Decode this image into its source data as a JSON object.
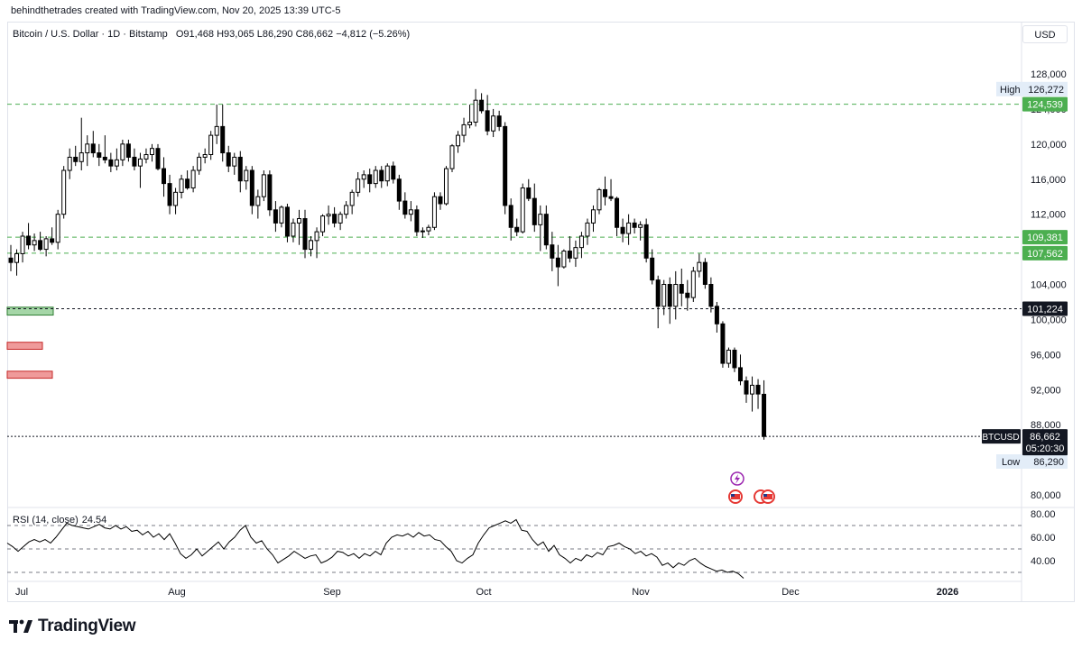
{
  "caption": "behindthetrades created with TradingView.com, Nov 20, 2025 13:39 UTC-5",
  "legend": {
    "symbol": "Bitcoin / U.S. Dollar · 1D · Bitstamp",
    "ohlc": "O91,468 H93,065 L86,290 C86,662 −4,812 (−5.26%)"
  },
  "currency_button": "USD",
  "brand": "TradingView",
  "rsi_legend": {
    "label": "RSI (14, close)",
    "value": "24.54"
  },
  "colors": {
    "up": "#ffffff",
    "down": "#000000",
    "green_level": "#4caf50",
    "grid": "#e0e3eb"
  },
  "chart_data": {
    "type": "candlestick",
    "y_ticks": [
      128000,
      124000,
      120000,
      116000,
      112000,
      108000,
      104000,
      100000,
      96000,
      92000,
      88000,
      80000
    ],
    "y_tick_labels": [
      "128,000",
      "124,000",
      "120,000",
      "116,000",
      "112,000",
      "108,000",
      "104,000",
      "100,000",
      "96,000",
      "92,000",
      "88,000",
      "80,000"
    ],
    "x_labels": [
      "Jul",
      "Aug",
      "Sep",
      "Oct",
      "Nov",
      "Dec",
      "2026"
    ],
    "high": {
      "label": "High",
      "value": "126,272"
    },
    "low": {
      "label": "Low",
      "value": "86,290"
    },
    "levels": [
      {
        "value": 124539,
        "label": "124,539",
        "style": "green"
      },
      {
        "value": 109381,
        "label": "109,381",
        "style": "green"
      },
      {
        "value": 107562,
        "label": "107,562",
        "style": "green"
      },
      {
        "value": 101224,
        "label": "101,224",
        "style": "black"
      }
    ],
    "last_price": {
      "symbol": "BTCUSD",
      "value": 86662,
      "label": "86,662",
      "countdown": "05:20:30"
    },
    "zones": [
      {
        "from": 101400,
        "to": 100500,
        "color": "green"
      },
      {
        "from": 97400,
        "to": 96600,
        "color": "red"
      },
      {
        "from": 94100,
        "to": 93300,
        "color": "red"
      }
    ],
    "candles": [
      [
        107000,
        108500,
        105500,
        106500
      ],
      [
        106500,
        108000,
        105000,
        107500
      ],
      [
        107500,
        110000,
        106500,
        109500
      ],
      [
        109500,
        111000,
        108000,
        108500
      ],
      [
        108500,
        109800,
        107800,
        109000
      ],
      [
        109000,
        110000,
        107800,
        108000
      ],
      [
        108000,
        109500,
        107200,
        109200
      ],
      [
        109200,
        110500,
        108500,
        108800
      ],
      [
        108800,
        112500,
        108000,
        112000
      ],
      [
        112000,
        117500,
        111500,
        117000
      ],
      [
        117000,
        119500,
        116000,
        118500
      ],
      [
        118500,
        119800,
        117500,
        118000
      ],
      [
        118000,
        123000,
        117000,
        119000
      ],
      [
        119000,
        121000,
        117500,
        120000
      ],
      [
        120000,
        121500,
        118500,
        119000
      ],
      [
        119000,
        120000,
        117500,
        118500
      ],
      [
        118500,
        121000,
        117800,
        118200
      ],
      [
        118200,
        119000,
        116800,
        117500
      ],
      [
        117500,
        119500,
        117000,
        118200
      ],
      [
        118200,
        120500,
        117500,
        120000
      ],
      [
        120000,
        120500,
        118000,
        118500
      ],
      [
        118500,
        119500,
        117000,
        117500
      ],
      [
        117500,
        119000,
        115000,
        118300
      ],
      [
        118300,
        119500,
        117800,
        118800
      ],
      [
        118800,
        120000,
        118000,
        119500
      ],
      [
        119500,
        120000,
        117000,
        117200
      ],
      [
        117200,
        118500,
        114000,
        115500
      ],
      [
        115500,
        116500,
        112000,
        113000
      ],
      [
        113000,
        115000,
        112000,
        114500
      ],
      [
        114500,
        116500,
        113800,
        116000
      ],
      [
        116000,
        117000,
        114800,
        115000
      ],
      [
        115000,
        117500,
        114500,
        117000
      ],
      [
        117000,
        119000,
        116500,
        118500
      ],
      [
        118500,
        119500,
        117800,
        118800
      ],
      [
        118800,
        121500,
        118200,
        121000
      ],
      [
        121000,
        124500,
        120000,
        122000
      ],
      [
        122000,
        124500,
        118000,
        119000
      ],
      [
        119000,
        119800,
        116800,
        117500
      ],
      [
        117500,
        119000,
        116500,
        118500
      ],
      [
        118500,
        119200,
        114500,
        115800
      ],
      [
        115800,
        117500,
        114800,
        117000
      ],
      [
        117000,
        117500,
        112000,
        113000
      ],
      [
        113000,
        114800,
        111500,
        114000
      ],
      [
        114000,
        117000,
        113500,
        116500
      ],
      [
        116500,
        117000,
        111800,
        112500
      ],
      [
        112500,
        113500,
        110000,
        111000
      ],
      [
        111000,
        113000,
        110500,
        112800
      ],
      [
        112800,
        113200,
        108800,
        109500
      ],
      [
        109500,
        111500,
        108800,
        111000
      ],
      [
        111000,
        112500,
        108500,
        111500
      ],
      [
        111500,
        112500,
        107000,
        108000
      ],
      [
        108000,
        109500,
        107200,
        109000
      ],
      [
        109000,
        110500,
        107000,
        110000
      ],
      [
        110000,
        112000,
        109500,
        111800
      ],
      [
        111800,
        113000,
        110800,
        112000
      ],
      [
        112000,
        112800,
        110500,
        111000
      ],
      [
        111000,
        112300,
        110200,
        112000
      ],
      [
        112000,
        113500,
        111500,
        113000
      ],
      [
        113000,
        114800,
        112000,
        114500
      ],
      [
        114500,
        116800,
        114000,
        116000
      ],
      [
        116000,
        117000,
        115000,
        116500
      ],
      [
        116500,
        117200,
        114500,
        115500
      ],
      [
        115500,
        117500,
        115000,
        117000
      ],
      [
        117000,
        117500,
        115000,
        115800
      ],
      [
        115800,
        117800,
        115200,
        117500
      ],
      [
        117500,
        118000,
        115500,
        116000
      ],
      [
        116000,
        116500,
        112500,
        113500
      ],
      [
        113500,
        114500,
        111500,
        112000
      ],
      [
        112000,
        113500,
        111200,
        112500
      ],
      [
        112500,
        113000,
        109500,
        110000
      ],
      [
        110000,
        110500,
        109300,
        110100
      ],
      [
        110100,
        110800,
        109600,
        110500
      ],
      [
        110500,
        114500,
        110200,
        114000
      ],
      [
        114000,
        114500,
        112500,
        113200
      ],
      [
        113200,
        117500,
        113000,
        117200
      ],
      [
        117200,
        120000,
        116800,
        119800
      ],
      [
        119800,
        121500,
        119000,
        121000
      ],
      [
        121000,
        123000,
        120200,
        122200
      ],
      [
        122200,
        124500,
        121800,
        122500
      ],
      [
        122500,
        126272,
        122000,
        125000
      ],
      [
        125000,
        125800,
        123500,
        123800
      ],
      [
        123800,
        125600,
        121000,
        121500
      ],
      [
        121500,
        124000,
        120800,
        123200
      ],
      [
        123200,
        123800,
        121500,
        122000
      ],
      [
        122000,
        122500,
        112000,
        113000
      ],
      [
        113000,
        113800,
        109000,
        110500
      ],
      [
        110500,
        111500,
        109500,
        110000
      ],
      [
        110000,
        115500,
        109800,
        115000
      ],
      [
        115000,
        116000,
        113500,
        113800
      ],
      [
        113800,
        115500,
        110000,
        110800
      ],
      [
        110800,
        113000,
        107800,
        112000
      ],
      [
        112000,
        113000,
        108000,
        108500
      ],
      [
        108500,
        110000,
        105500,
        107000
      ],
      [
        107000,
        108500,
        103800,
        106000
      ],
      [
        106000,
        108000,
        105800,
        107800
      ],
      [
        107800,
        109500,
        106500,
        107000
      ],
      [
        107000,
        109000,
        106000,
        108200
      ],
      [
        108200,
        110000,
        107000,
        109500
      ],
      [
        109500,
        111500,
        108500,
        111000
      ],
      [
        111000,
        113000,
        110000,
        112500
      ],
      [
        112500,
        115000,
        112000,
        114800
      ],
      [
        114800,
        116300,
        113000,
        114000
      ],
      [
        114000,
        116000,
        113500,
        113800
      ],
      [
        113800,
        114000,
        109500,
        110500
      ],
      [
        110500,
        111500,
        108800,
        109800
      ],
      [
        109800,
        112000,
        108500,
        111000
      ],
      [
        111000,
        111500,
        109800,
        110500
      ],
      [
        110500,
        111200,
        109000,
        110800
      ],
      [
        110800,
        111500,
        106500,
        107000
      ],
      [
        107000,
        108000,
        104000,
        104500
      ],
      [
        104500,
        105000,
        99000,
        101500
      ],
      [
        101500,
        104500,
        100500,
        104000
      ],
      [
        104000,
        104800,
        99500,
        101500
      ],
      [
        101500,
        105500,
        100000,
        104000
      ],
      [
        104000,
        105800,
        101500,
        103000
      ],
      [
        103000,
        104500,
        101000,
        102500
      ],
      [
        102500,
        106000,
        102000,
        105500
      ],
      [
        105500,
        107500,
        104800,
        106500
      ],
      [
        106500,
        107000,
        103500,
        104000
      ],
      [
        104000,
        104800,
        100800,
        101500
      ],
      [
        101500,
        102000,
        98500,
        99500
      ],
      [
        99500,
        99800,
        94500,
        95000
      ],
      [
        95000,
        96800,
        94500,
        96500
      ],
      [
        96500,
        96800,
        94000,
        94500
      ],
      [
        94500,
        96000,
        92500,
        93000
      ],
      [
        93000,
        93500,
        90500,
        91500
      ],
      [
        91500,
        93500,
        89500,
        92500
      ],
      [
        92500,
        93200,
        89800,
        91500
      ],
      [
        91468,
        93065,
        86290,
        86662
      ]
    ],
    "rsi": {
      "label": "RSI (14, close)",
      "value": "24.54",
      "levels": [
        70,
        50,
        30
      ],
      "tick_labels": [
        "80.00",
        "60.00",
        "40.00"
      ],
      "ticks": [
        80,
        60,
        40
      ],
      "series": [
        [
          0,
          55
        ],
        [
          6,
          52
        ],
        [
          12,
          48
        ],
        [
          18,
          52
        ],
        [
          24,
          56
        ],
        [
          30,
          58
        ],
        [
          36,
          56
        ],
        [
          42,
          58
        ],
        [
          48,
          55
        ],
        [
          54,
          60
        ],
        [
          60,
          66
        ],
        [
          66,
          72
        ],
        [
          72,
          70
        ],
        [
          78,
          69
        ],
        [
          84,
          68
        ],
        [
          90,
          67
        ],
        [
          96,
          69
        ],
        [
          102,
          71
        ],
        [
          108,
          68
        ],
        [
          114,
          67
        ],
        [
          120,
          70
        ],
        [
          126,
          67
        ],
        [
          132,
          69
        ],
        [
          138,
          65
        ],
        [
          144,
          66
        ],
        [
          150,
          62
        ],
        [
          156,
          65
        ],
        [
          162,
          60
        ],
        [
          168,
          63
        ],
        [
          174,
          58
        ],
        [
          180,
          63
        ],
        [
          186,
          55
        ],
        [
          192,
          46
        ],
        [
          198,
          42
        ],
        [
          204,
          45
        ],
        [
          210,
          50
        ],
        [
          216,
          44
        ],
        [
          222,
          48
        ],
        [
          228,
          52
        ],
        [
          234,
          56
        ],
        [
          240,
          50
        ],
        [
          246,
          56
        ],
        [
          252,
          60
        ],
        [
          258,
          66
        ],
        [
          264,
          70
        ],
        [
          270,
          60
        ],
        [
          276,
          55
        ],
        [
          282,
          57
        ],
        [
          288,
          50
        ],
        [
          294,
          45
        ],
        [
          300,
          38
        ],
        [
          306,
          41
        ],
        [
          312,
          44
        ],
        [
          318,
          48
        ],
        [
          324,
          45
        ],
        [
          330,
          42
        ],
        [
          336,
          44
        ],
        [
          342,
          45
        ],
        [
          348,
          38
        ],
        [
          354,
          40
        ],
        [
          360,
          43
        ],
        [
          366,
          48
        ],
        [
          372,
          47
        ],
        [
          378,
          44
        ],
        [
          384,
          46
        ],
        [
          390,
          42
        ],
        [
          396,
          46
        ],
        [
          402,
          44
        ],
        [
          408,
          48
        ],
        [
          414,
          45
        ],
        [
          420,
          55
        ],
        [
          426,
          60
        ],
        [
          432,
          62
        ],
        [
          438,
          61
        ],
        [
          444,
          63
        ],
        [
          450,
          60
        ],
        [
          456,
          64
        ],
        [
          462,
          61
        ],
        [
          468,
          62
        ],
        [
          474,
          58
        ],
        [
          480,
          57
        ],
        [
          486,
          52
        ],
        [
          492,
          48
        ],
        [
          498,
          40
        ],
        [
          504,
          38
        ],
        [
          510,
          42
        ],
        [
          516,
          45
        ],
        [
          522,
          55
        ],
        [
          528,
          62
        ],
        [
          534,
          68
        ],
        [
          540,
          70
        ],
        [
          546,
          72
        ],
        [
          552,
          74
        ],
        [
          558,
          72
        ],
        [
          564,
          75
        ],
        [
          570,
          66
        ],
        [
          576,
          65
        ],
        [
          582,
          58
        ],
        [
          588,
          53
        ],
        [
          594,
          56
        ],
        [
          600,
          48
        ],
        [
          606,
          53
        ],
        [
          612,
          45
        ],
        [
          618,
          42
        ],
        [
          624,
          38
        ],
        [
          630,
          42
        ],
        [
          636,
          40
        ],
        [
          642,
          45
        ],
        [
          648,
          43
        ],
        [
          654,
          47
        ],
        [
          660,
          45
        ],
        [
          666,
          52
        ],
        [
          672,
          53
        ],
        [
          678,
          55
        ],
        [
          684,
          52
        ],
        [
          690,
          50
        ],
        [
          696,
          46
        ],
        [
          702,
          48
        ],
        [
          708,
          44
        ],
        [
          714,
          46
        ],
        [
          720,
          43
        ],
        [
          726,
          36
        ],
        [
          732,
          38
        ],
        [
          738,
          34
        ],
        [
          744,
          38
        ],
        [
          750,
          36
        ],
        [
          756,
          40
        ],
        [
          762,
          42
        ],
        [
          768,
          38
        ],
        [
          774,
          35
        ],
        [
          780,
          33
        ],
        [
          786,
          31
        ],
        [
          792,
          32
        ],
        [
          798,
          30
        ],
        [
          804,
          31
        ],
        [
          810,
          29
        ],
        [
          816,
          25
        ]
      ]
    }
  }
}
